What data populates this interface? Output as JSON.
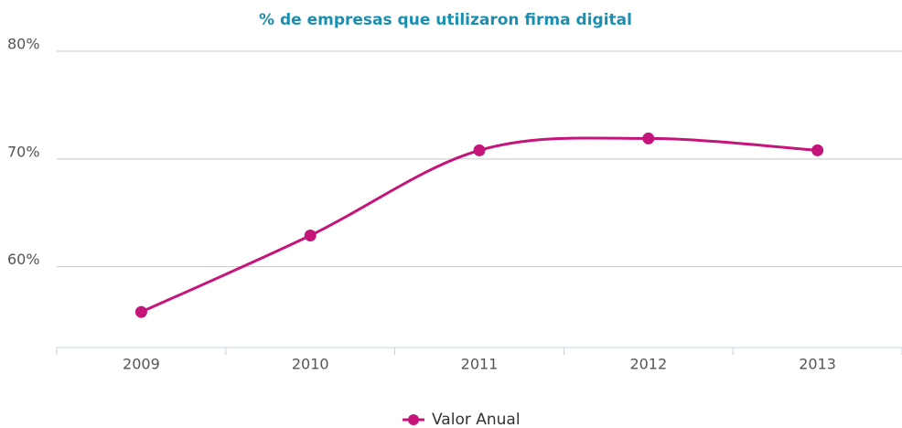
{
  "chart_data": {
    "type": "line",
    "title": "% de empresas que utilizaron firma digital",
    "categories": [
      "2009",
      "2010",
      "2011",
      "2012",
      "2013"
    ],
    "series": [
      {
        "name": "Valor Anual",
        "color": "#c5147a",
        "values": [
          55.8,
          62.9,
          70.8,
          71.9,
          70.8
        ]
      }
    ],
    "ylim": [
      52.5,
      80
    ],
    "yticks": [
      {
        "value": 60,
        "label": "60%"
      },
      {
        "value": 70,
        "label": "70%"
      },
      {
        "value": 80,
        "label": "80%"
      }
    ],
    "grid": true,
    "legend": "bottom"
  }
}
